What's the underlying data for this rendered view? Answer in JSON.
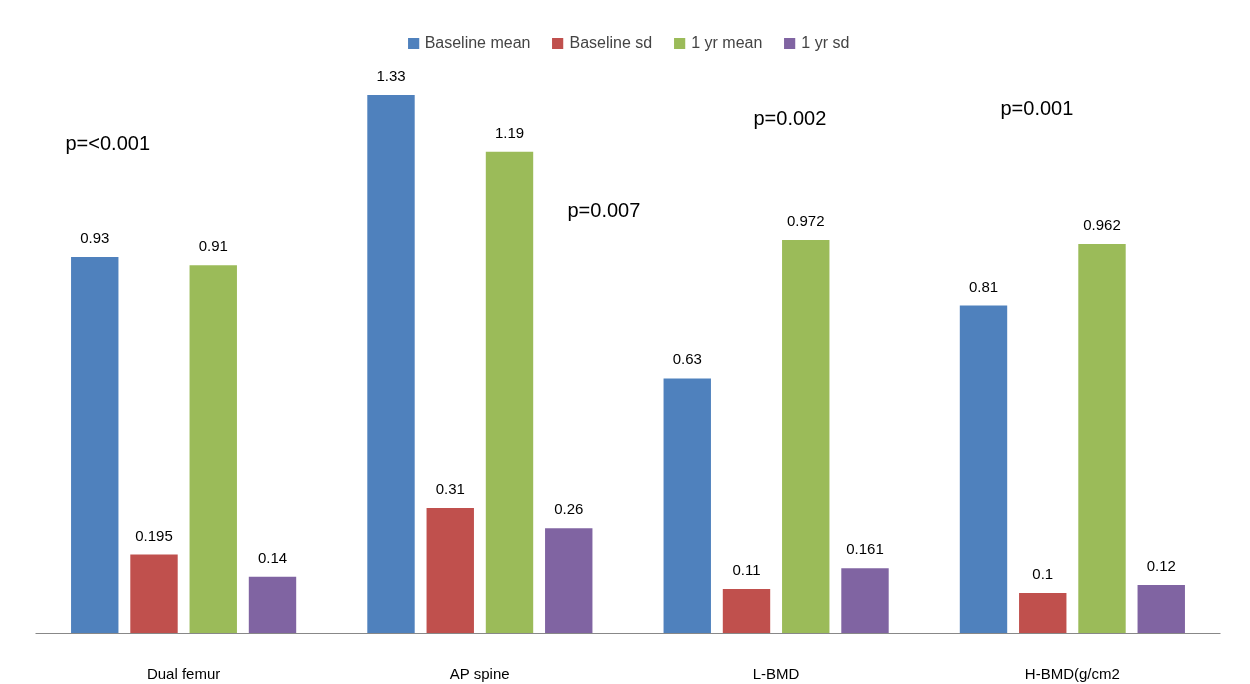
{
  "chart_data": {
    "type": "bar",
    "categories": [
      "Dual femur",
      "AP spine",
      "L-BMD",
      "H-BMD(g/cm2"
    ],
    "series": [
      {
        "name": "Baseline mean",
        "color": "#4f81bd",
        "values": [
          0.93,
          1.33,
          0.63,
          0.81
        ]
      },
      {
        "name": "Baseline sd",
        "color": "#c0504d",
        "values": [
          0.195,
          0.31,
          0.11,
          0.1
        ]
      },
      {
        "name": "1 yr mean",
        "color": "#9bbb59",
        "values": [
          0.91,
          1.19,
          0.972,
          0.962
        ]
      },
      {
        "name": "1 yr sd",
        "color": "#8064a2",
        "values": [
          0.14,
          0.26,
          0.161,
          0.12
        ]
      }
    ],
    "data_labels": true,
    "legend": "top",
    "grid": false,
    "annotations": [
      "p=<0.001",
      "p=0.007",
      "p=0.002",
      "p=0.001"
    ]
  }
}
